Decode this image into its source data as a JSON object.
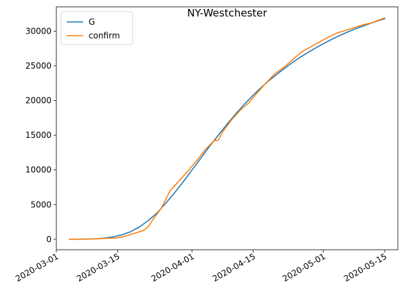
{
  "chart_data": {
    "type": "line",
    "title": "NY-Westchester",
    "xlabel": "",
    "ylabel": "",
    "x_type": "date",
    "xlim": [
      "2020-03-01",
      "2020-05-18"
    ],
    "ylim": [
      -1500,
      33500
    ],
    "x_ticks": [
      "2020-03-01",
      "2020-03-15",
      "2020-04-01",
      "2020-04-15",
      "2020-05-01",
      "2020-05-15"
    ],
    "y_ticks": [
      0,
      5000,
      10000,
      15000,
      20000,
      25000,
      30000
    ],
    "y_tick_labels": [
      "0",
      "5000",
      "10000",
      "15000",
      "20000",
      "25000",
      "30000"
    ],
    "grid": false,
    "legend": {
      "position": "top-left",
      "entries": [
        "G",
        "confirm"
      ]
    },
    "series": [
      {
        "name": "G",
        "color": "#1f77b4",
        "points": [
          [
            "2020-03-04",
            0
          ],
          [
            "2020-03-07",
            25
          ],
          [
            "2020-03-10",
            80
          ],
          [
            "2020-03-12",
            180
          ],
          [
            "2020-03-14",
            350
          ],
          [
            "2020-03-16",
            650
          ],
          [
            "2020-03-18",
            1100
          ],
          [
            "2020-03-20",
            1800
          ],
          [
            "2020-03-22",
            2700
          ],
          [
            "2020-03-24",
            3800
          ],
          [
            "2020-03-26",
            5200
          ],
          [
            "2020-03-28",
            6700
          ],
          [
            "2020-03-30",
            8300
          ],
          [
            "2020-04-01",
            10000
          ],
          [
            "2020-04-03",
            11700
          ],
          [
            "2020-04-05",
            13400
          ],
          [
            "2020-04-07",
            15000
          ],
          [
            "2020-04-09",
            16600
          ],
          [
            "2020-04-11",
            18100
          ],
          [
            "2020-04-13",
            19500
          ],
          [
            "2020-04-15",
            20800
          ],
          [
            "2020-04-17",
            22000
          ],
          [
            "2020-04-19",
            23100
          ],
          [
            "2020-04-21",
            24100
          ],
          [
            "2020-04-23",
            25050
          ],
          [
            "2020-04-25",
            25950
          ],
          [
            "2020-04-27",
            26750
          ],
          [
            "2020-04-29",
            27500
          ],
          [
            "2020-05-01",
            28200
          ],
          [
            "2020-05-03",
            28850
          ],
          [
            "2020-05-05",
            29450
          ],
          [
            "2020-05-07",
            30000
          ],
          [
            "2020-05-09",
            30500
          ],
          [
            "2020-05-11",
            30950
          ],
          [
            "2020-05-13",
            31400
          ],
          [
            "2020-05-15",
            31800
          ]
        ]
      },
      {
        "name": "confirm",
        "color": "#ff7f0e",
        "points": [
          [
            "2020-03-04",
            0
          ],
          [
            "2020-03-07",
            10
          ],
          [
            "2020-03-10",
            60
          ],
          [
            "2020-03-12",
            120
          ],
          [
            "2020-03-14",
            180
          ],
          [
            "2020-03-15",
            200
          ],
          [
            "2020-03-17",
            500
          ],
          [
            "2020-03-19",
            900
          ],
          [
            "2020-03-21",
            1300
          ],
          [
            "2020-03-22",
            1800
          ],
          [
            "2020-03-23",
            2800
          ],
          [
            "2020-03-25",
            4500
          ],
          [
            "2020-03-27",
            7000
          ],
          [
            "2020-03-29",
            8400
          ],
          [
            "2020-03-31",
            9800
          ],
          [
            "2020-04-02",
            11300
          ],
          [
            "2020-04-04",
            12900
          ],
          [
            "2020-04-06",
            14200
          ],
          [
            "2020-04-07",
            14300
          ],
          [
            "2020-04-08",
            15500
          ],
          [
            "2020-04-10",
            17200
          ],
          [
            "2020-04-12",
            18600
          ],
          [
            "2020-04-14",
            19700
          ],
          [
            "2020-04-16",
            21200
          ],
          [
            "2020-04-18",
            22600
          ],
          [
            "2020-04-20",
            23900
          ],
          [
            "2020-04-22",
            24800
          ],
          [
            "2020-04-24",
            25900
          ],
          [
            "2020-04-26",
            27000
          ],
          [
            "2020-04-28",
            27700
          ],
          [
            "2020-04-30",
            28400
          ],
          [
            "2020-05-02",
            29100
          ],
          [
            "2020-05-04",
            29700
          ],
          [
            "2020-05-06",
            30100
          ],
          [
            "2020-05-08",
            30500
          ],
          [
            "2020-05-10",
            30900
          ],
          [
            "2020-05-12",
            31200
          ],
          [
            "2020-05-15",
            31900
          ]
        ]
      }
    ]
  }
}
